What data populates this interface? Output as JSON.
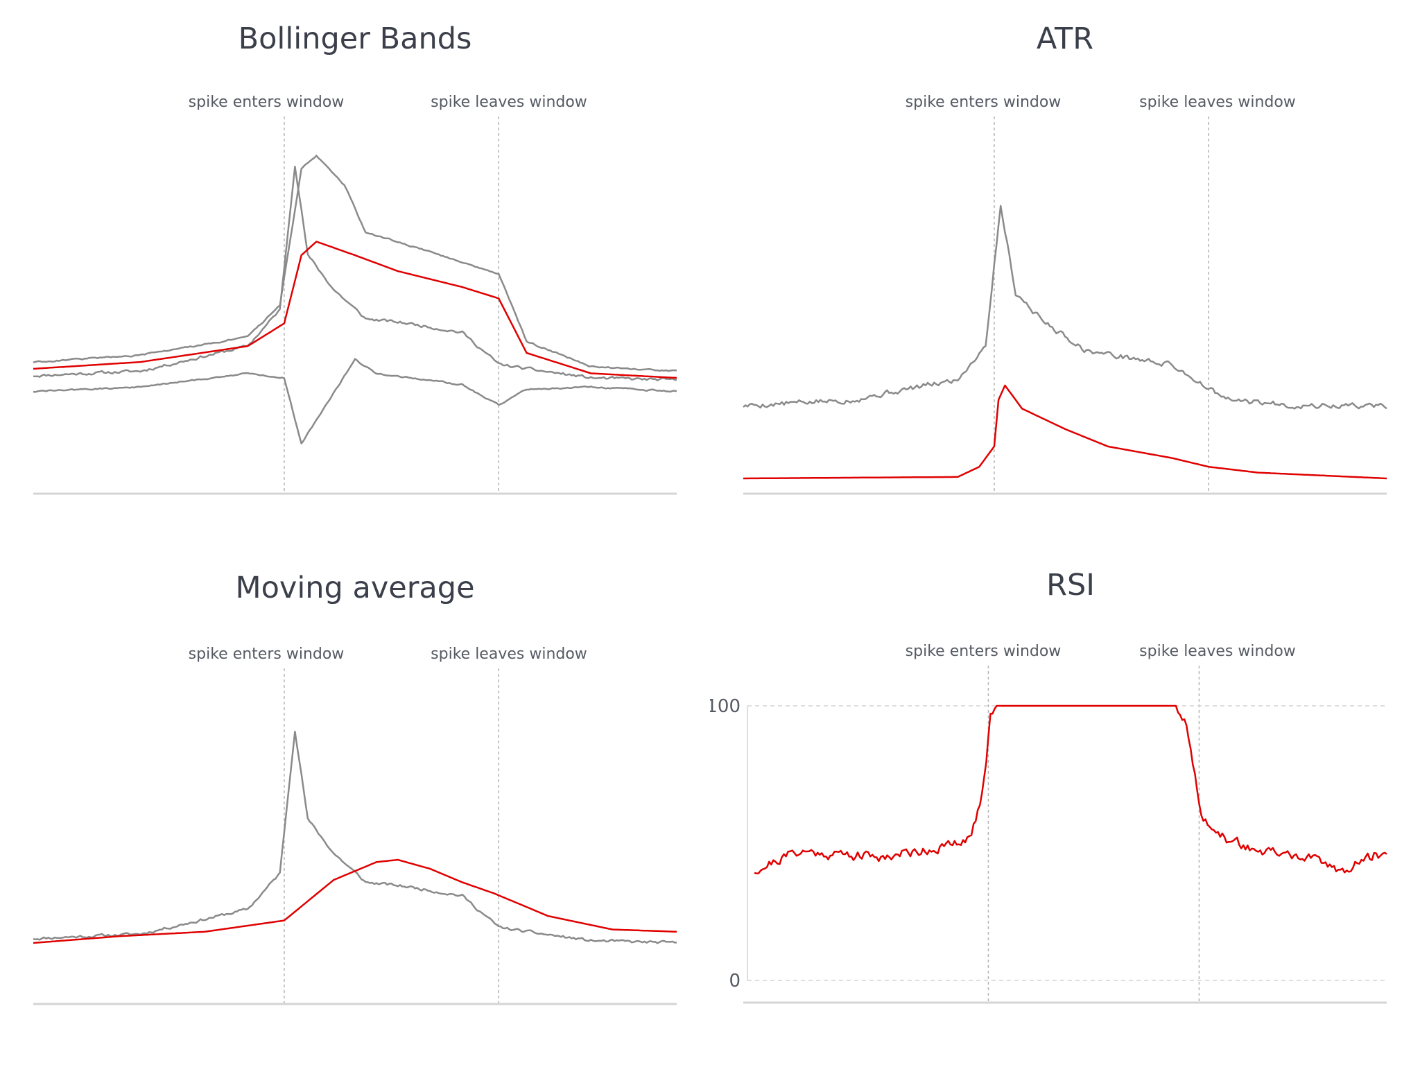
{
  "colors": {
    "price": "#8a8a8a",
    "indicator": "#e00000",
    "axis": "#d4d4d4",
    "marker": "#b3b3b3"
  },
  "panels": {
    "bollinger": {
      "title": "Bollinger Bands"
    },
    "atr": {
      "title": "ATR"
    },
    "ma": {
      "title": "Moving average"
    },
    "rsi": {
      "title": "RSI"
    }
  },
  "annotations": {
    "enter": "spike enters window",
    "leave": "spike leaves window"
  },
  "chart_data": [
    {
      "type": "line",
      "title": "Bollinger Bands",
      "xlim": [
        0,
        300
      ],
      "markers": {
        "spike_enters_window": 117,
        "spike_leaves_window": 217
      },
      "series": [
        {
          "values": [
            [
              0,
              0.07
            ],
            [
              50,
              0.09
            ],
            [
              100,
              0.2
            ],
            [
              115,
              0.36
            ],
            [
              122,
              1.0
            ],
            [
              128,
              0.6
            ],
            [
              140,
              0.45
            ],
            [
              155,
              0.32
            ],
            [
              175,
              0.3
            ],
            [
              200,
              0.26
            ],
            [
              217,
              0.12
            ],
            [
              230,
              0.1
            ],
            [
              260,
              0.06
            ],
            [
              300,
              0.05
            ]
          ]
        },
        {
          "values": [
            [
              0,
              0.1
            ],
            [
              50,
              0.13
            ],
            [
              100,
              0.2
            ],
            [
              117,
              0.3
            ],
            [
              125,
              0.6
            ],
            [
              132,
              0.66
            ],
            [
              150,
              0.6
            ],
            [
              170,
              0.53
            ],
            [
              200,
              0.46
            ],
            [
              217,
              0.41
            ],
            [
              230,
              0.17
            ],
            [
              260,
              0.08
            ],
            [
              300,
              0.06
            ]
          ]
        },
        {
          "values": [
            [
              0,
              0.13
            ],
            [
              50,
              0.16
            ],
            [
              100,
              0.24
            ],
            [
              115,
              0.38
            ],
            [
              125,
              0.98
            ],
            [
              132,
              1.04
            ],
            [
              145,
              0.91
            ],
            [
              155,
              0.7
            ],
            [
              170,
              0.66
            ],
            [
              200,
              0.57
            ],
            [
              217,
              0.52
            ],
            [
              230,
              0.22
            ],
            [
              260,
              0.11
            ],
            [
              300,
              0.09
            ]
          ]
        },
        {
          "values": [
            [
              0,
              0.0
            ],
            [
              50,
              0.02
            ],
            [
              100,
              0.08
            ],
            [
              117,
              0.06
            ],
            [
              125,
              -0.23
            ],
            [
              135,
              -0.08
            ],
            [
              150,
              0.14
            ],
            [
              160,
              0.08
            ],
            [
              200,
              0.03
            ],
            [
              217,
              -0.06
            ],
            [
              230,
              0.01
            ],
            [
              260,
              0.02
            ],
            [
              300,
              0.0
            ]
          ]
        }
      ]
    },
    {
      "type": "line",
      "title": "ATR",
      "xlim": [
        0,
        300
      ],
      "markers": {
        "spike_enters_window": 117,
        "spike_leaves_window": 217
      },
      "series": [
        {
          "values": [
            [
              0,
              0.31
            ],
            [
              50,
              0.33
            ],
            [
              100,
              0.4
            ],
            [
              113,
              0.52
            ],
            [
              120,
              1.0
            ],
            [
              127,
              0.7
            ],
            [
              140,
              0.6
            ],
            [
              160,
              0.5
            ],
            [
              200,
              0.45
            ],
            [
              215,
              0.38
            ],
            [
              225,
              0.33
            ],
            [
              260,
              0.31
            ],
            [
              300,
              0.31
            ]
          ]
        },
        {
          "values": [
            [
              0,
              0.06
            ],
            [
              100,
              0.065
            ],
            [
              110,
              0.1
            ],
            [
              117,
              0.17
            ],
            [
              119,
              0.33
            ],
            [
              122,
              0.38
            ],
            [
              130,
              0.3
            ],
            [
              150,
              0.23
            ],
            [
              170,
              0.17
            ],
            [
              200,
              0.13
            ],
            [
              217,
              0.1
            ],
            [
              240,
              0.08
            ],
            [
              300,
              0.06
            ]
          ]
        }
      ]
    },
    {
      "type": "line",
      "title": "Moving average",
      "xlim": [
        0,
        300
      ],
      "markers": {
        "spike_enters_window": 117,
        "spike_leaves_window": 217
      },
      "series": [
        {
          "values": [
            [
              0,
              0.07
            ],
            [
              50,
              0.09
            ],
            [
              100,
              0.2
            ],
            [
              115,
              0.36
            ],
            [
              122,
              1.0
            ],
            [
              128,
              0.6
            ],
            [
              140,
              0.45
            ],
            [
              155,
              0.32
            ],
            [
              175,
              0.3
            ],
            [
              200,
              0.26
            ],
            [
              217,
              0.12
            ],
            [
              230,
              0.1
            ],
            [
              260,
              0.06
            ],
            [
              300,
              0.05
            ]
          ]
        },
        {
          "values": [
            [
              0,
              0.05
            ],
            [
              40,
              0.08
            ],
            [
              80,
              0.1
            ],
            [
              117,
              0.15
            ],
            [
              140,
              0.33
            ],
            [
              160,
              0.41
            ],
            [
              170,
              0.42
            ],
            [
              185,
              0.38
            ],
            [
              200,
              0.32
            ],
            [
              215,
              0.27
            ],
            [
              240,
              0.17
            ],
            [
              270,
              0.11
            ],
            [
              300,
              0.1
            ]
          ]
        }
      ]
    },
    {
      "type": "line",
      "title": "RSI",
      "ylabel": "",
      "ylim": [
        0,
        100
      ],
      "yticks": [
        0,
        100
      ],
      "xlim": [
        0,
        300
      ],
      "markers": {
        "spike_enters_window": 111,
        "spike_leaves_window": 211
      },
      "series": [
        {
          "values": [
            [
              0,
              40
            ],
            [
              20,
              47
            ],
            [
              60,
              45
            ],
            [
              100,
              50
            ],
            [
              105,
              58
            ],
            [
              108,
              68
            ],
            [
              110,
              80
            ],
            [
              112,
              97
            ],
            [
              115,
              100
            ],
            [
              150,
              100
            ],
            [
              200,
              100
            ],
            [
              204,
              95
            ],
            [
              208,
              80
            ],
            [
              212,
              62
            ],
            [
              218,
              53
            ],
            [
              240,
              47
            ],
            [
              260,
              45
            ],
            [
              280,
              40
            ],
            [
              295,
              46
            ],
            [
              300,
              46
            ]
          ]
        }
      ]
    }
  ]
}
